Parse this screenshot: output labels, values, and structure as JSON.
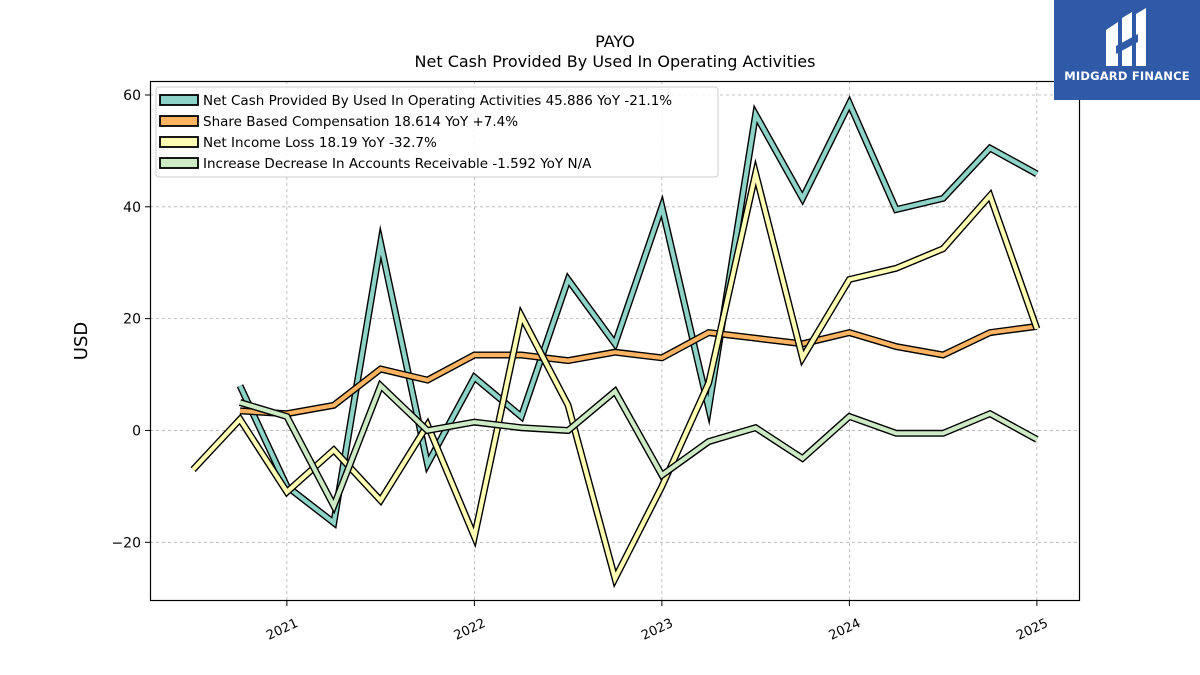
{
  "brand": {
    "name": "MIDGARD FINANCE",
    "bg_color": "#2f5aa8"
  },
  "chart_data": {
    "type": "line",
    "title": "PAYO",
    "subtitle": "Net Cash Provided By Used In Operating Activities",
    "xlabel": "",
    "ylabel": "USD",
    "xlim": [
      2020.27,
      2025.23
    ],
    "ylim": [
      -30.5,
      62.5
    ],
    "yticks": [
      -20,
      0,
      20,
      40,
      60
    ],
    "ytick_labels": [
      "−20",
      "0",
      "20",
      "40",
      "60"
    ],
    "xticks": [
      2021,
      2022,
      2023,
      2024,
      2025
    ],
    "xtick_labels": [
      "2021",
      "2022",
      "2023",
      "2024",
      "2025"
    ],
    "grid": true,
    "legend_position": "top-left",
    "series": [
      {
        "name": "Net Cash Provided By Used In Operating Activities",
        "legend_label": "Net Cash Provided By Used In Operating Activities  45.886 YoY -21.1%",
        "color": "#8dd3c7",
        "points": [
          [
            2020.75,
            8.0
          ],
          [
            2021.0,
            -10.0
          ],
          [
            2021.25,
            -16.5
          ],
          [
            2021.5,
            33.5
          ],
          [
            2021.75,
            -6.0
          ],
          [
            2022.0,
            9.5
          ],
          [
            2022.25,
            2.5
          ],
          [
            2022.5,
            27.0
          ],
          [
            2022.75,
            15.5
          ],
          [
            2023.0,
            40.0
          ],
          [
            2023.25,
            4.0
          ],
          [
            2023.5,
            56.5
          ],
          [
            2023.75,
            41.5
          ],
          [
            2024.0,
            58.5
          ],
          [
            2024.25,
            39.5
          ],
          [
            2024.5,
            41.5
          ],
          [
            2024.75,
            50.5
          ],
          [
            2025.0,
            45.886
          ]
        ]
      },
      {
        "name": "Share Based Compensation",
        "legend_label": "Share Based Compensation  18.614 YoY +7.4%",
        "color": "#fdb462",
        "points": [
          [
            2020.75,
            3.5
          ],
          [
            2021.0,
            3.0
          ],
          [
            2021.25,
            4.5
          ],
          [
            2021.5,
            11.0
          ],
          [
            2021.75,
            9.0
          ],
          [
            2022.0,
            13.5
          ],
          [
            2022.25,
            13.5
          ],
          [
            2022.5,
            12.5
          ],
          [
            2022.75,
            14.0
          ],
          [
            2023.0,
            13.0
          ],
          [
            2023.25,
            17.5
          ],
          [
            2023.5,
            16.5
          ],
          [
            2023.75,
            15.5
          ],
          [
            2024.0,
            17.5
          ],
          [
            2024.25,
            15.0
          ],
          [
            2024.5,
            13.5
          ],
          [
            2024.75,
            17.5
          ],
          [
            2025.0,
            18.614
          ]
        ]
      },
      {
        "name": "Net Income Loss",
        "legend_label": "Net Income Loss  18.19 YoY -32.7%",
        "color": "#ffffb3",
        "points": [
          [
            2020.5,
            -7.0
          ],
          [
            2020.75,
            2.0
          ],
          [
            2021.0,
            -11.0
          ],
          [
            2021.25,
            -3.5
          ],
          [
            2021.5,
            -12.5
          ],
          [
            2021.75,
            1.0
          ],
          [
            2022.0,
            -19.0
          ],
          [
            2022.25,
            20.5
          ],
          [
            2022.5,
            4.5
          ],
          [
            2022.75,
            -26.5
          ],
          [
            2023.0,
            -10.0
          ],
          [
            2023.25,
            8.5
          ],
          [
            2023.5,
            46.0
          ],
          [
            2023.75,
            13.0
          ],
          [
            2024.0,
            27.0
          ],
          [
            2024.25,
            29.0
          ],
          [
            2024.5,
            32.5
          ],
          [
            2024.75,
            42.0
          ],
          [
            2025.0,
            18.19
          ]
        ]
      },
      {
        "name": "Increase Decrease In Accounts Receivable",
        "legend_label": "Increase Decrease In Accounts Receivable  -1.592 YoY N/A",
        "color": "#ccebc5",
        "points": [
          [
            2020.75,
            5.0
          ],
          [
            2021.0,
            2.5
          ],
          [
            2021.25,
            -13.5
          ],
          [
            2021.5,
            8.0
          ],
          [
            2021.75,
            0.0
          ],
          [
            2022.0,
            1.5
          ],
          [
            2022.25,
            0.5
          ],
          [
            2022.5,
            0.0
          ],
          [
            2022.75,
            7.0
          ],
          [
            2023.0,
            -8.0
          ],
          [
            2023.25,
            -2.0
          ],
          [
            2023.5,
            0.5
          ],
          [
            2023.75,
            -5.0
          ],
          [
            2024.0,
            2.5
          ],
          [
            2024.25,
            -0.5
          ],
          [
            2024.5,
            -0.5
          ],
          [
            2024.75,
            3.0
          ],
          [
            2025.0,
            -1.592
          ]
        ]
      }
    ]
  }
}
